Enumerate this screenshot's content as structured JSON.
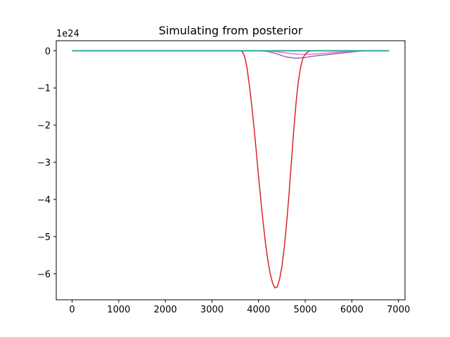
{
  "chart_data": {
    "type": "line",
    "title": "Simulating from posterior",
    "xlabel": "",
    "ylabel": "",
    "offset_label": "1e24",
    "xlim": [
      -340,
      7140
    ],
    "ylim": [
      -6.7,
      0.27
    ],
    "x_ticks": [
      0,
      1000,
      2000,
      3000,
      4000,
      5000,
      6000,
      7000
    ],
    "x_tick_labels": [
      "0",
      "1000",
      "2000",
      "3000",
      "4000",
      "5000",
      "6000",
      "7000"
    ],
    "y_ticks": [
      0,
      -1,
      -2,
      -3,
      -4,
      -5,
      -6
    ],
    "y_tick_labels": [
      "0",
      "−1",
      "−2",
      "−3",
      "−4",
      "−5",
      "−6"
    ],
    "grid": false,
    "legend": false,
    "series": [
      {
        "color": "#1f77b4",
        "points": [
          [
            0,
            0
          ],
          [
            6800,
            0
          ]
        ]
      },
      {
        "color": "#ff7f0e",
        "points": [
          [
            0,
            0
          ],
          [
            6800,
            0
          ]
        ]
      },
      {
        "color": "#2ca02c",
        "points": [
          [
            0,
            0
          ],
          [
            6800,
            0
          ]
        ]
      },
      {
        "color": "#8c564b",
        "points": [
          [
            0,
            0
          ],
          [
            6800,
            0
          ]
        ]
      },
      {
        "color": "#7f7f7f",
        "points": [
          [
            0,
            0
          ],
          [
            6800,
            0
          ]
        ]
      },
      {
        "color": "#bcbd22",
        "points": [
          [
            0,
            0
          ],
          [
            6800,
            0
          ]
        ]
      },
      {
        "color": "#e377c2",
        "points": [
          [
            0,
            0
          ],
          [
            4150,
            0
          ],
          [
            4400,
            -0.03
          ],
          [
            4700,
            -0.08
          ],
          [
            5000,
            -0.1
          ],
          [
            5300,
            -0.08
          ],
          [
            5700,
            -0.04
          ],
          [
            6000,
            -0.01
          ],
          [
            6300,
            0
          ],
          [
            6800,
            0
          ]
        ]
      },
      {
        "color": "#9467bd",
        "points": [
          [
            0,
            0
          ],
          [
            4000,
            0
          ],
          [
            4200,
            -0.02
          ],
          [
            4400,
            -0.09
          ],
          [
            4600,
            -0.17
          ],
          [
            4800,
            -0.2
          ],
          [
            5000,
            -0.18
          ],
          [
            5200,
            -0.14
          ],
          [
            5500,
            -0.1
          ],
          [
            5800,
            -0.06
          ],
          [
            6100,
            -0.02
          ],
          [
            6300,
            0
          ],
          [
            6800,
            0
          ]
        ]
      },
      {
        "color": "#d62728",
        "points": [
          [
            0,
            0
          ],
          [
            3600,
            0
          ],
          [
            3650,
            -0.02
          ],
          [
            3700,
            -0.15
          ],
          [
            3750,
            -0.45
          ],
          [
            3800,
            -0.9
          ],
          [
            3850,
            -1.45
          ],
          [
            3900,
            -2.05
          ],
          [
            3950,
            -2.7
          ],
          [
            4000,
            -3.4
          ],
          [
            4050,
            -4.05
          ],
          [
            4100,
            -4.65
          ],
          [
            4150,
            -5.2
          ],
          [
            4200,
            -5.65
          ],
          [
            4250,
            -6.0
          ],
          [
            4300,
            -6.25
          ],
          [
            4350,
            -6.38
          ],
          [
            4400,
            -6.35
          ],
          [
            4450,
            -6.15
          ],
          [
            4500,
            -5.8
          ],
          [
            4550,
            -5.3
          ],
          [
            4600,
            -4.65
          ],
          [
            4650,
            -3.9
          ],
          [
            4700,
            -3.05
          ],
          [
            4750,
            -2.2
          ],
          [
            4800,
            -1.45
          ],
          [
            4850,
            -0.85
          ],
          [
            4900,
            -0.45
          ],
          [
            4950,
            -0.2
          ],
          [
            5000,
            -0.09
          ],
          [
            5050,
            -0.04
          ],
          [
            5100,
            -0.01
          ],
          [
            5150,
            0
          ],
          [
            6800,
            0
          ]
        ]
      },
      {
        "color": "#17becf",
        "points": [
          [
            0,
            0
          ],
          [
            6800,
            0
          ]
        ]
      }
    ],
    "top_series": {
      "color": "#3aafa0",
      "points": [
        [
          0,
          0
        ],
        [
          6800,
          0
        ]
      ]
    }
  }
}
